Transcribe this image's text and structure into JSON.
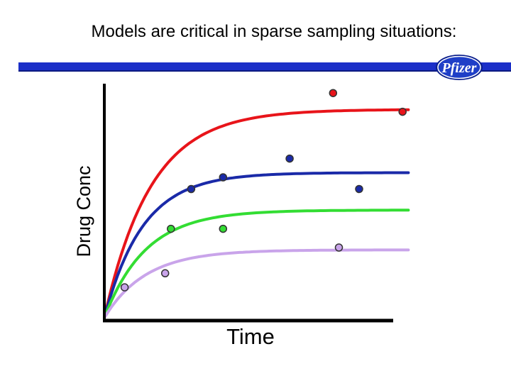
{
  "slide": {
    "title": "Models are critical in sparse sampling situations:"
  },
  "logo": {
    "text": "Pfizer",
    "colors": {
      "fill": "#1f3fc7",
      "ring": "#0b1f8c",
      "text": "#ffffff"
    }
  },
  "accent": {
    "bar": "#1b2fc8"
  },
  "chart_data": {
    "type": "line",
    "xlabel": "Time",
    "ylabel": "Drug Conc",
    "xlim": [
      0,
      10
    ],
    "ylim": [
      0,
      10
    ],
    "grid": false,
    "legend": "none",
    "series": [
      {
        "color": "#e8141a",
        "curve": {
          "plateau": 8.9,
          "rate": 0.62
        },
        "points": [
          [
            7.9,
            9.6
          ],
          [
            10.3,
            8.8
          ]
        ]
      },
      {
        "color": "#1a2aa8",
        "curve": {
          "plateau": 6.2,
          "rate": 0.75
        },
        "points": [
          [
            3.0,
            5.5
          ],
          [
            4.1,
            6.0
          ],
          [
            6.4,
            6.8
          ],
          [
            8.8,
            5.5
          ]
        ]
      },
      {
        "color": "#33dd33",
        "curve": {
          "plateau": 4.6,
          "rate": 0.7
        },
        "points": [
          [
            2.3,
            3.8
          ],
          [
            4.1,
            3.8
          ]
        ]
      },
      {
        "color": "#c9a4ea",
        "curve": {
          "plateau": 2.9,
          "rate": 0.7
        },
        "points": [
          [
            0.7,
            1.3
          ],
          [
            2.1,
            1.9
          ],
          [
            8.1,
            3.0
          ]
        ]
      }
    ]
  }
}
